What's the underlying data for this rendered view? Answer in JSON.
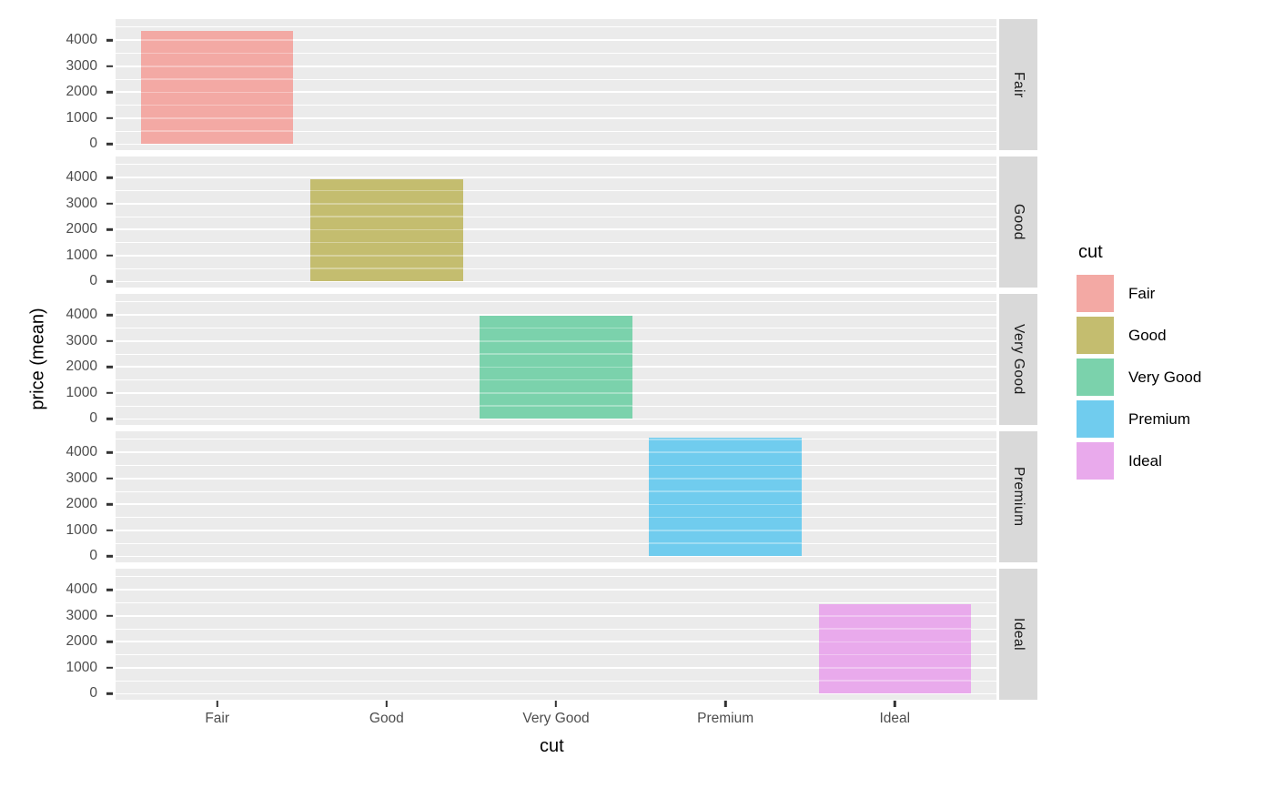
{
  "chart_data": {
    "type": "bar",
    "title": "",
    "xlabel": "cut",
    "ylabel": "price (mean)",
    "categories": [
      "Fair",
      "Good",
      "Very Good",
      "Premium",
      "Ideal"
    ],
    "values": [
      4358.76,
      3928.86,
      3981.76,
      4584.26,
      3457.54
    ],
    "facet_variable": "cut",
    "facets": [
      "Fair",
      "Good",
      "Very Good",
      "Premium",
      "Ideal"
    ],
    "facet_layout": "rows",
    "y_ticks": [
      0,
      1000,
      2000,
      3000,
      4000
    ],
    "y_minor_ticks": [
      500,
      1500,
      2500,
      3500,
      4500
    ],
    "ylim": [
      -229,
      4813
    ],
    "grid": "on",
    "bar_alpha_note": "bars are semi-transparent; white gridlines show through",
    "bar_colors": [
      "#F3A9A4",
      "#C4BD6F",
      "#7BD2AC",
      "#70CCEE",
      "#E9AAEC"
    ],
    "legend_position": "right"
  },
  "legend": {
    "title": "cut",
    "entries": [
      {
        "label": "Fair",
        "color": "#F3A9A4"
      },
      {
        "label": "Good",
        "color": "#C4BD6F"
      },
      {
        "label": "Very Good",
        "color": "#7BD2AC"
      },
      {
        "label": "Premium",
        "color": "#70CCEE"
      },
      {
        "label": "Ideal",
        "color": "#E9AAEC"
      }
    ]
  },
  "theme": {
    "panel_background": "#EBEBEB",
    "gridline_color": "#FFFFFF",
    "strip_background": "#D9D9D9",
    "strip_text_color": "#1A1A1A",
    "tick_text_color": "#4D4D4D",
    "tick_mark_color": "#333333",
    "axis_title_color": "#000000",
    "page_background": "#FFFFFF"
  }
}
